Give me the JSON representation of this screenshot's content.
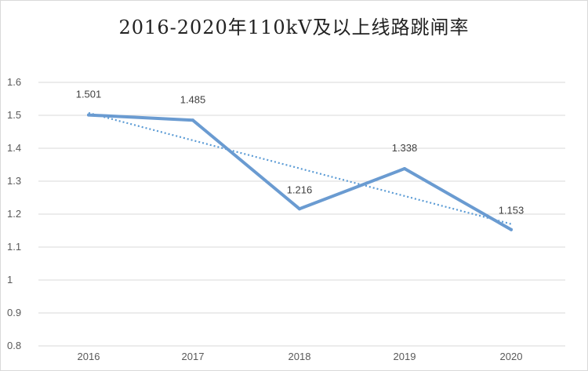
{
  "chart_data": {
    "type": "line",
    "title": "2016-2020年110kV及以上线路跳闸率",
    "categories": [
      "2016",
      "2017",
      "2018",
      "2019",
      "2020"
    ],
    "series": [
      {
        "values": [
          1.501,
          1.485,
          1.216,
          1.338,
          1.153
        ],
        "color": "#6a9bd1",
        "data_labels": true
      },
      {
        "trendline": "linear",
        "style": "dotted",
        "color": "#5b9bd5"
      }
    ],
    "ylim": [
      0.8,
      1.6
    ],
    "yticks": [
      "0.8",
      "0.9",
      "1",
      "1.1",
      "1.2",
      "1.3",
      "1.4",
      "1.5",
      "1.6"
    ],
    "grid": true,
    "legend": "none"
  }
}
